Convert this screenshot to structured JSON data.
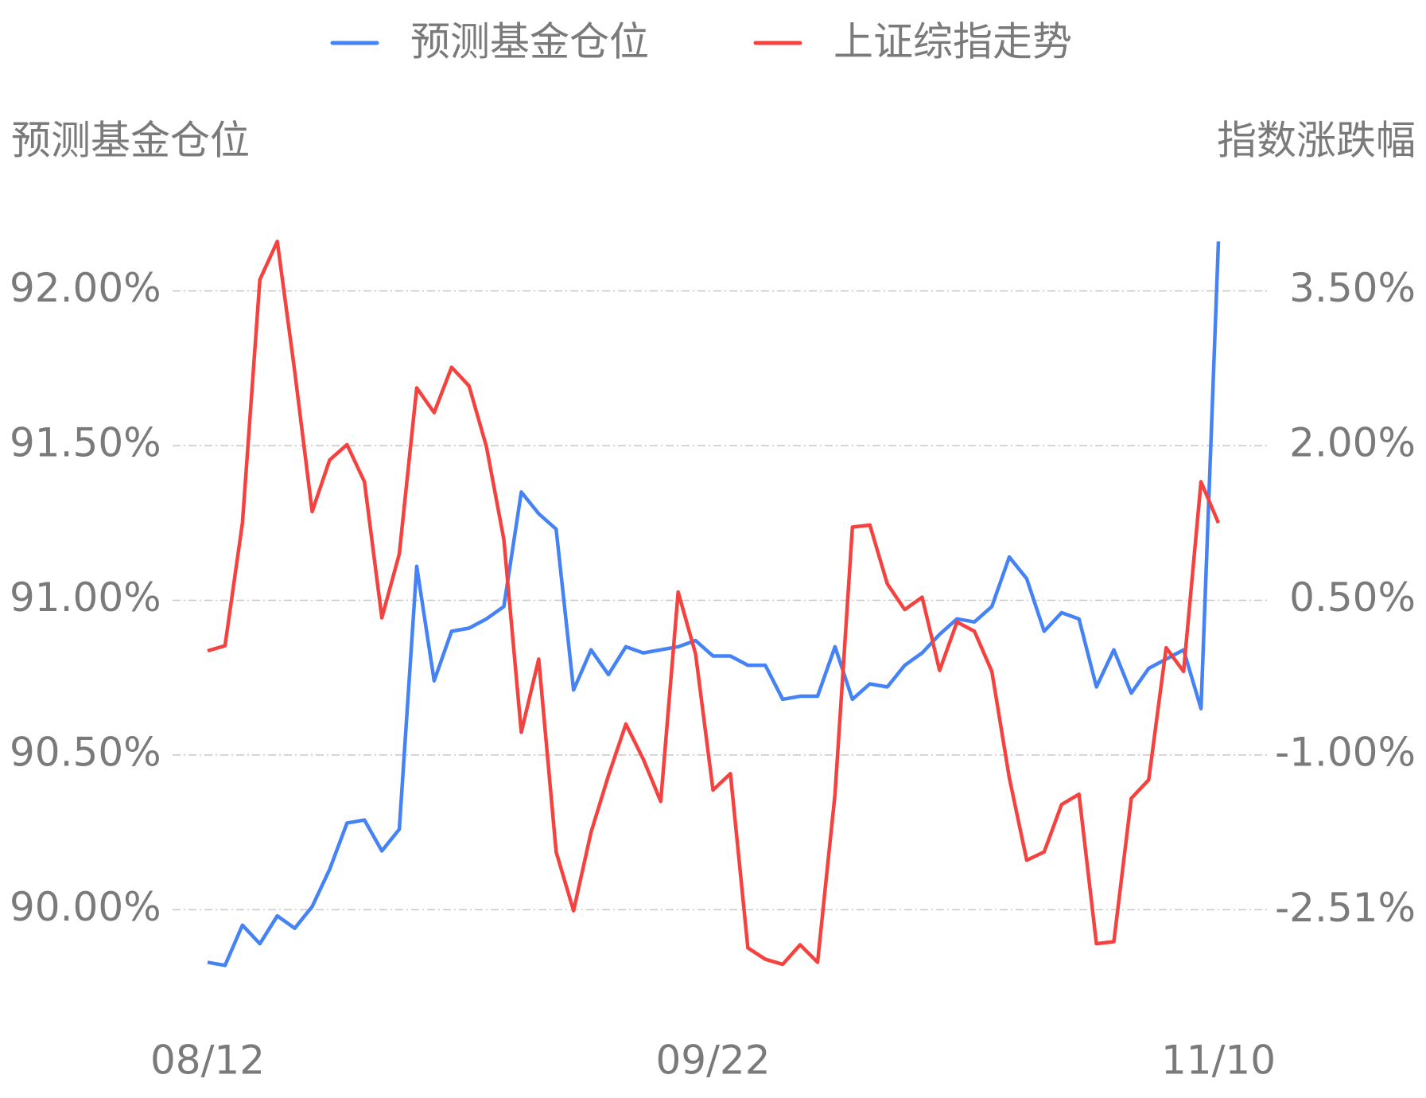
{
  "chart_data": {
    "type": "line",
    "ylabel": "预测基金仓位",
    "y2label": "指数涨跌幅",
    "legend": "top",
    "categories": [
      "08/12",
      null,
      null,
      null,
      null,
      null,
      null,
      null,
      null,
      null,
      null,
      null,
      null,
      null,
      null,
      null,
      null,
      null,
      null,
      null,
      null,
      null,
      null,
      null,
      null,
      null,
      null,
      null,
      null,
      "09/22",
      null,
      null,
      null,
      null,
      null,
      null,
      null,
      null,
      null,
      null,
      null,
      null,
      null,
      null,
      null,
      null,
      null,
      null,
      null,
      null,
      null,
      null,
      null,
      null,
      null,
      null,
      null,
      null,
      "11/10"
    ],
    "series": [
      {
        "name": "预测基金仓位",
        "color": "#4482f6",
        "axis": "y",
        "values": [
          89.83,
          89.82,
          89.95,
          89.89,
          89.98,
          89.94,
          90.01,
          90.13,
          90.28,
          90.29,
          90.19,
          90.26,
          91.11,
          90.74,
          90.9,
          90.91,
          90.94,
          90.98,
          91.35,
          91.28,
          91.23,
          90.71,
          90.84,
          90.76,
          90.85,
          90.83,
          90.84,
          90.85,
          90.87,
          90.82,
          90.82,
          90.79,
          90.79,
          90.68,
          90.69,
          90.69,
          90.85,
          90.68,
          90.73,
          90.72,
          90.79,
          90.83,
          90.89,
          90.94,
          90.93,
          90.98,
          91.14,
          91.07,
          90.9,
          90.96,
          90.94,
          90.72,
          90.84,
          90.7,
          90.78,
          90.81,
          90.84,
          90.65,
          92.16
        ]
      },
      {
        "name": "上证综指走势",
        "color": "#f5423f",
        "axis": "y2",
        "values": [
          0.01,
          0.06,
          1.25,
          3.61,
          3.98,
          2.72,
          1.36,
          1.86,
          2.01,
          1.65,
          0.33,
          0.95,
          2.56,
          2.32,
          2.76,
          2.58,
          1.99,
          1.09,
          -0.78,
          -0.07,
          -1.94,
          -2.51,
          -1.75,
          -1.2,
          -0.7,
          -1.04,
          -1.45,
          0.58,
          -0.02,
          -1.34,
          -1.18,
          -2.87,
          -2.98,
          -3.03,
          -2.84,
          -3.01,
          -1.38,
          1.21,
          1.23,
          0.66,
          0.41,
          0.53,
          -0.18,
          0.29,
          0.2,
          -0.19,
          -1.22,
          -2.02,
          -1.94,
          -1.48,
          -1.38,
          -2.83,
          -2.81,
          -1.42,
          -1.24,
          0.04,
          -0.19,
          1.65,
          1.25
        ]
      }
    ],
    "ylim": [
      89.7,
      92.3
    ],
    "yticks": [
      {
        "value": 90,
        "label": "90.00%"
      },
      {
        "value": 90.5,
        "label": "90.50%"
      },
      {
        "value": 91,
        "label": "91.00%"
      },
      {
        "value": 91.5,
        "label": "91.50%"
      },
      {
        "value": 92,
        "label": "92.00%"
      }
    ],
    "y2lim": [
      -3.4,
      4.4
    ],
    "y2ticks": [
      {
        "value": -2.51,
        "label": "-2.51%"
      },
      {
        "value": -1,
        "label": "-1.00%"
      },
      {
        "value": 0.5,
        "label": "0.50%"
      },
      {
        "value": 2,
        "label": "2.00%"
      },
      {
        "value": 3.5,
        "label": "3.50%"
      }
    ],
    "grid": true
  }
}
